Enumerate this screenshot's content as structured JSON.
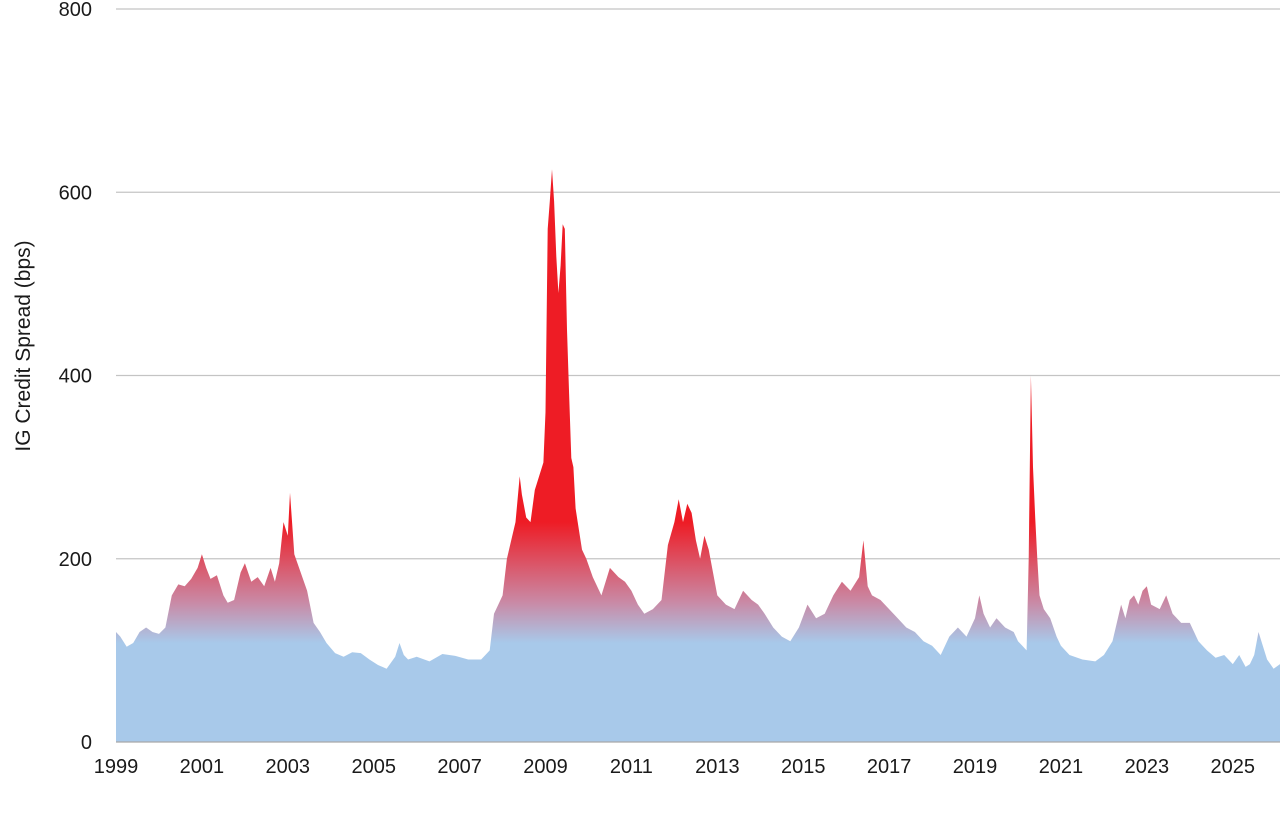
{
  "chart_data": {
    "type": "area",
    "title": "",
    "xlabel": "",
    "ylabel": "IG Credit Spread (bps)",
    "xlim": [
      1999,
      2026.1
    ],
    "ylim": [
      0,
      800
    ],
    "y_ticks": [
      0,
      200,
      400,
      600,
      800
    ],
    "x_ticks": [
      1999,
      2001,
      2003,
      2005,
      2007,
      2009,
      2011,
      2013,
      2015,
      2017,
      2019,
      2021,
      2023,
      2025
    ],
    "grid": true,
    "legend": "none",
    "colors": {
      "low": "#a8c9ea",
      "mid": "#c98aa6",
      "high": "#ee1c25",
      "grid": "#c4c4c4",
      "text": "#1a1a1a"
    },
    "series": [
      {
        "x": [
          1999.0,
          1999.1,
          1999.25,
          1999.4,
          1999.55,
          1999.7,
          1999.85,
          2000.0,
          2000.15,
          2000.3,
          2000.45,
          2000.6,
          2000.75,
          2000.9,
          2001.0,
          2001.1,
          2001.2,
          2001.35,
          2001.5,
          2001.6,
          2001.75,
          2001.9,
          2002.0,
          2002.15,
          2002.3,
          2002.45,
          2002.6,
          2002.7,
          2002.8,
          2002.9,
          2003.0,
          2003.05,
          2003.15,
          2003.3,
          2003.45,
          2003.6,
          2003.75,
          2003.9,
          2004.1,
          2004.3,
          2004.5,
          2004.7,
          2004.9,
          2005.1,
          2005.3,
          2005.5,
          2005.6,
          2005.7,
          2005.8,
          2006.0,
          2006.3,
          2006.6,
          2006.9,
          2007.2,
          2007.5,
          2007.6,
          2007.7,
          2007.8,
          2007.9,
          2008.0,
          2008.1,
          2008.2,
          2008.3,
          2008.4,
          2008.45,
          2008.55,
          2008.65,
          2008.75,
          2008.85,
          2008.95,
          2009.0,
          2009.05,
          2009.1,
          2009.15,
          2009.2,
          2009.25,
          2009.3,
          2009.35,
          2009.4,
          2009.45,
          2009.5,
          2009.55,
          2009.6,
          2009.65,
          2009.7,
          2009.75,
          2009.85,
          2009.95,
          2010.1,
          2010.3,
          2010.5,
          2010.7,
          2010.85,
          2011.0,
          2011.15,
          2011.3,
          2011.5,
          2011.7,
          2011.85,
          2012.0,
          2012.1,
          2012.2,
          2012.3,
          2012.4,
          2012.5,
          2012.6,
          2012.7,
          2012.8,
          2012.9,
          2013.0,
          2013.2,
          2013.4,
          2013.6,
          2013.8,
          2013.95,
          2014.1,
          2014.3,
          2014.5,
          2014.7,
          2014.9,
          2015.1,
          2015.3,
          2015.5,
          2015.7,
          2015.9,
          2016.1,
          2016.3,
          2016.4,
          2016.5,
          2016.6,
          2016.8,
          2017.0,
          2017.2,
          2017.4,
          2017.6,
          2017.8,
          2018.0,
          2018.2,
          2018.4,
          2018.6,
          2018.8,
          2019.0,
          2019.1,
          2019.2,
          2019.35,
          2019.5,
          2019.7,
          2019.9,
          2020.0,
          2020.1,
          2020.2,
          2020.25,
          2020.3,
          2020.35,
          2020.4,
          2020.45,
          2020.5,
          2020.6,
          2020.75,
          2020.9,
          2021.0,
          2021.2,
          2021.5,
          2021.8,
          2022.0,
          2022.2,
          2022.4,
          2022.5,
          2022.6,
          2022.7,
          2022.8,
          2022.9,
          2023.0,
          2023.1,
          2023.3,
          2023.45,
          2023.6,
          2023.8,
          2024.0,
          2024.2,
          2024.4,
          2024.6,
          2024.8,
          2025.0,
          2025.15,
          2025.3,
          2025.4,
          2025.5,
          2025.6,
          2025.8,
          2025.95,
          2026.1
        ],
        "values": [
          120,
          115,
          104,
          108,
          120,
          125,
          120,
          118,
          125,
          160,
          172,
          170,
          178,
          190,
          205,
          190,
          178,
          182,
          160,
          152,
          155,
          185,
          195,
          175,
          180,
          170,
          190,
          175,
          195,
          240,
          225,
          272,
          205,
          185,
          165,
          130,
          120,
          108,
          97,
          93,
          98,
          97,
          90,
          84,
          80,
          93,
          108,
          95,
          90,
          93,
          88,
          96,
          94,
          90,
          90,
          95,
          100,
          140,
          150,
          160,
          200,
          220,
          240,
          290,
          270,
          245,
          240,
          275,
          290,
          305,
          360,
          560,
          590,
          625,
          590,
          530,
          490,
          520,
          565,
          560,
          450,
          380,
          310,
          300,
          255,
          240,
          210,
          200,
          180,
          160,
          190,
          180,
          175,
          165,
          150,
          140,
          145,
          155,
          215,
          240,
          265,
          240,
          260,
          250,
          220,
          200,
          225,
          210,
          185,
          160,
          150,
          145,
          165,
          155,
          150,
          140,
          125,
          115,
          110,
          125,
          150,
          135,
          140,
          160,
          175,
          165,
          180,
          220,
          170,
          160,
          155,
          145,
          135,
          125,
          120,
          110,
          105,
          95,
          115,
          125,
          115,
          135,
          160,
          140,
          125,
          135,
          125,
          120,
          110,
          105,
          100,
          200,
          400,
          300,
          245,
          200,
          160,
          145,
          135,
          115,
          105,
          95,
          90,
          88,
          95,
          110,
          150,
          135,
          155,
          160,
          150,
          165,
          170,
          150,
          145,
          160,
          140,
          130,
          130,
          110,
          100,
          92,
          95,
          85,
          95,
          82,
          85,
          95,
          120,
          90,
          80,
          85
        ]
      }
    ]
  }
}
